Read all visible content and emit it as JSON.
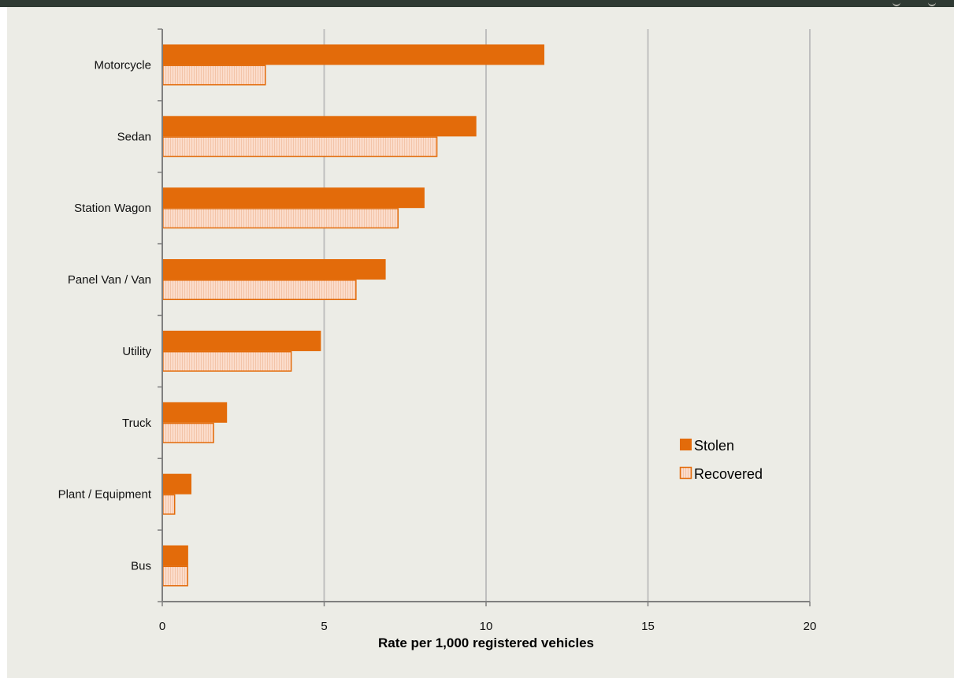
{
  "chart_data": {
    "type": "bar",
    "orientation": "horizontal",
    "title": "",
    "xlabel": "Rate per 1,000 registered vehicles",
    "ylabel": "",
    "xlim": [
      0,
      20
    ],
    "x_ticks": [
      0,
      5,
      10,
      15,
      20
    ],
    "grid": "vertical",
    "legend_position": "right",
    "categories": [
      "Motorcycle",
      "Sedan",
      "Station Wagon",
      "Panel Van / Van",
      "Utility",
      "Truck",
      "Plant / Equipment",
      "Bus"
    ],
    "series": [
      {
        "name": "Stolen",
        "values": [
          11.8,
          9.7,
          8.1,
          6.9,
          4.9,
          2.0,
          0.9,
          0.8
        ]
      },
      {
        "name": "Recovered",
        "values": [
          3.2,
          8.5,
          7.3,
          6.0,
          4.0,
          1.6,
          0.4,
          0.8
        ]
      }
    ],
    "colors": {
      "stolen": "#e36b0a",
      "recovered_fill": "#fbdccb",
      "recovered_stripe": "#f3c4a8",
      "recovered_border": "#e36b0a",
      "grid": "#bfbfbf",
      "axis": "#7f7f7f"
    }
  }
}
